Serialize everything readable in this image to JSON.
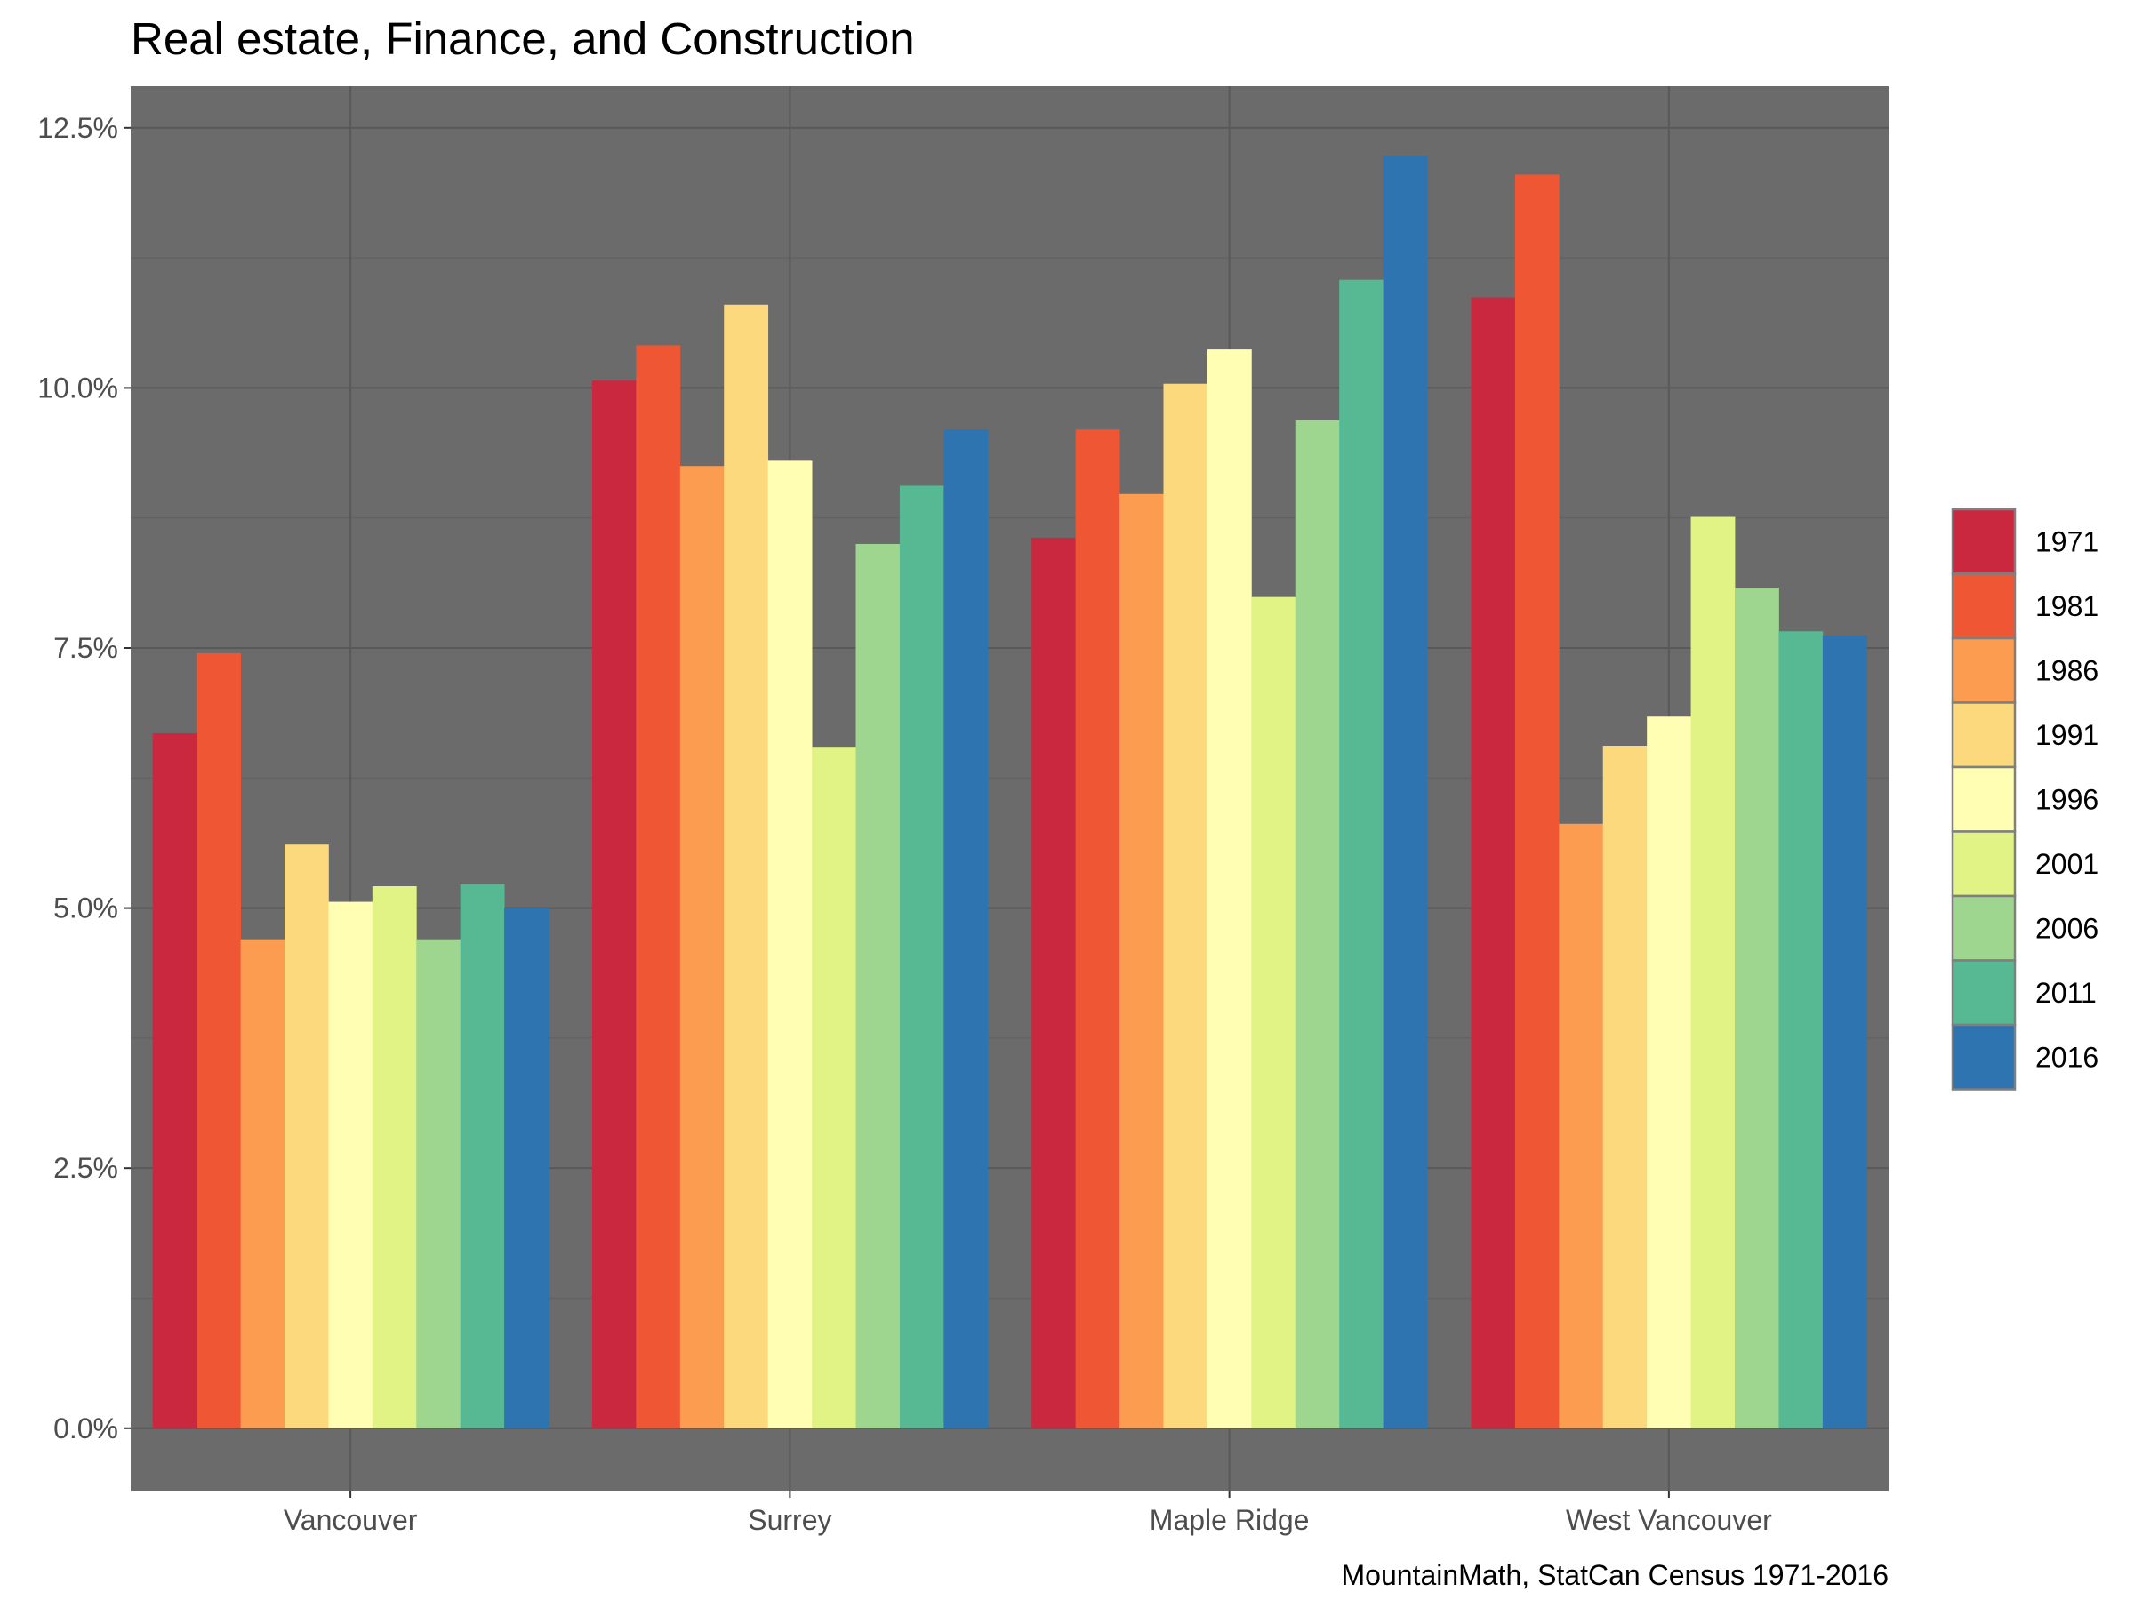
{
  "chart_data": {
    "type": "bar",
    "title": "Real estate, Finance, and Construction",
    "caption": "MountainMath, StatCan Census 1971-2016",
    "xlabel": "",
    "ylabel": "",
    "categories": [
      "Vancouver",
      "Surrey",
      "Maple Ridge",
      "West Vancouver"
    ],
    "y_tick_labels": [
      "0.0%",
      "2.5%",
      "5.0%",
      "7.5%",
      "10.0%",
      "12.5%"
    ],
    "y_ticks": [
      0,
      2.5,
      5.0,
      7.5,
      10.0,
      12.5
    ],
    "ylim": [
      -0.6,
      12.9
    ],
    "grid": true,
    "legend_position": "right",
    "series": [
      {
        "name": "1971",
        "color": "#ca283f",
        "values": [
          6.68,
          10.07,
          8.56,
          10.87
        ]
      },
      {
        "name": "1981",
        "color": "#ef5634",
        "values": [
          7.45,
          10.41,
          9.6,
          12.05
        ]
      },
      {
        "name": "1986",
        "color": "#fb9c50",
        "values": [
          4.7,
          9.25,
          8.98,
          5.81
        ]
      },
      {
        "name": "1991",
        "color": "#fcd97c",
        "values": [
          5.61,
          10.8,
          10.04,
          6.56
        ]
      },
      {
        "name": "1996",
        "color": "#fffeb3",
        "values": [
          5.06,
          9.3,
          10.37,
          6.84
        ]
      },
      {
        "name": "2001",
        "color": "#e1f384",
        "values": [
          5.21,
          6.55,
          7.99,
          8.76
        ]
      },
      {
        "name": "2006",
        "color": "#9fd68f",
        "values": [
          4.7,
          8.5,
          9.69,
          8.08
        ]
      },
      {
        "name": "2011",
        "color": "#56b994",
        "values": [
          5.23,
          9.06,
          11.04,
          7.66
        ]
      },
      {
        "name": "2016",
        "color": "#2d74b0",
        "values": [
          5.0,
          9.6,
          12.23,
          7.62
        ]
      }
    ],
    "colors": {
      "panel_background": "#6b6b6b",
      "grid_major": "#595959",
      "grid_minor": "#616161"
    }
  }
}
